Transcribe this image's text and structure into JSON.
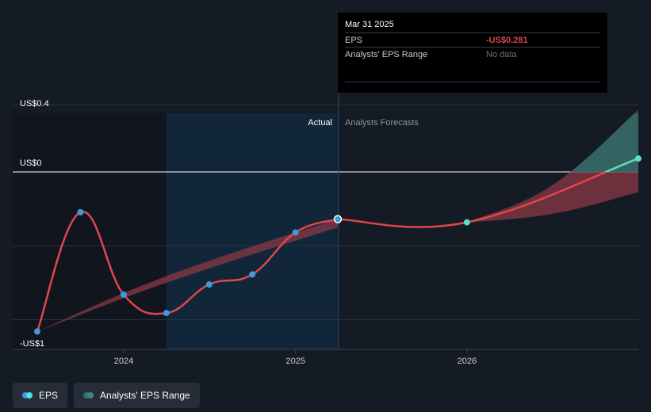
{
  "chart_data": {
    "type": "line",
    "y_ticks": [
      {
        "value": 0.4,
        "label": "US$0.4"
      },
      {
        "value": 0,
        "label": "US$0"
      },
      {
        "value": -1,
        "label": "-US$1"
      }
    ],
    "x_ticks": [
      "2024",
      "2025",
      "2026"
    ],
    "ylim": [
      -1.1,
      0.4
    ],
    "region_labels": {
      "actual": "Actual",
      "forecast": "Analysts Forecasts"
    },
    "eps_actual": [
      {
        "x": "2023-06-30",
        "y": -0.95
      },
      {
        "x": "2023-09-30",
        "y": -0.24
      },
      {
        "x": "2023-12-31",
        "y": -0.73
      },
      {
        "x": "2024-03-31",
        "y": -0.84
      },
      {
        "x": "2024-06-30",
        "y": -0.67
      },
      {
        "x": "2024-09-30",
        "y": -0.61
      },
      {
        "x": "2024-12-31",
        "y": -0.36
      },
      {
        "x": "2025-03-31",
        "y": -0.281
      }
    ],
    "eps_forecast": [
      {
        "x": "2025-03-31",
        "y": -0.281
      },
      {
        "x": "2025-12-31",
        "y": -0.3
      },
      {
        "x": "2026-12-31",
        "y": 0.08
      }
    ],
    "range_actual": {
      "x": [
        "2023-06-30",
        "2024-03-31",
        "2025-03-31"
      ],
      "low": [
        -0.95,
        -0.66,
        -0.33
      ],
      "high": [
        -0.95,
        -0.62,
        -0.28
      ]
    },
    "range_forecast": {
      "x": [
        "2025-12-31",
        "2026-06-30",
        "2026-12-31"
      ],
      "low": [
        -0.3,
        -0.25,
        -0.12
      ],
      "high": [
        -0.3,
        -0.08,
        0.37
      ]
    },
    "colors": {
      "eps": "#e0464b",
      "eps_positive": "#58e0c0",
      "point": "#3a9be0",
      "range_neg": "#8a3a44",
      "range_pos": "#2f6a66",
      "actual_band": "#12263a"
    }
  },
  "tooltip": {
    "date": "Mar 31 2025",
    "eps_label": "EPS",
    "eps_value": "-US$0.281",
    "range_label": "Analysts' EPS Range",
    "range_value": "No data"
  },
  "legend": {
    "eps_label": "EPS",
    "range_label": "Analysts' EPS Range"
  }
}
